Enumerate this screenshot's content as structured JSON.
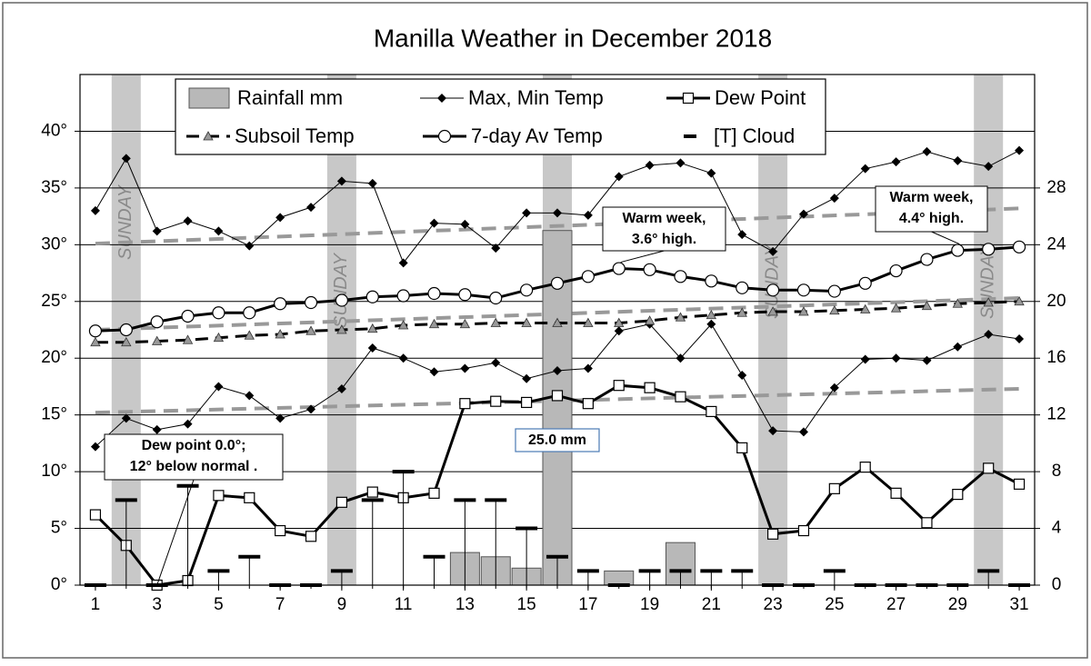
{
  "chart_data": {
    "type": "combo",
    "title": "Manilla Weather in December 2018",
    "x": [
      1,
      2,
      3,
      4,
      5,
      6,
      7,
      8,
      9,
      10,
      11,
      12,
      13,
      14,
      15,
      16,
      17,
      18,
      19,
      20,
      21,
      22,
      23,
      24,
      25,
      26,
      27,
      28,
      29,
      30,
      31
    ],
    "xlim": [
      0.5,
      31.5
    ],
    "xticks": [
      1,
      3,
      5,
      7,
      9,
      11,
      13,
      15,
      17,
      19,
      21,
      23,
      25,
      27,
      29,
      31
    ],
    "ylim": [
      0,
      45
    ],
    "yticks": [
      {
        "value": 0,
        "label": "0°"
      },
      {
        "value": 5,
        "label": "5°"
      },
      {
        "value": 10,
        "label": "10°"
      },
      {
        "value": 15,
        "label": "15°"
      },
      {
        "value": 20,
        "label": "20°"
      },
      {
        "value": 25,
        "label": "25°"
      },
      {
        "value": 30,
        "label": "30°"
      },
      {
        "value": 35,
        "label": "35°"
      },
      {
        "value": 40,
        "label": "40°"
      }
    ],
    "y2lim": [
      0,
      36
    ],
    "y2ticks": [
      0,
      4,
      8,
      12,
      16,
      20,
      24,
      28
    ],
    "grid": true,
    "sundays": {
      "label": "SUNDAY",
      "x": [
        2,
        9,
        16,
        23,
        30
      ],
      "color": "#c8c8c8"
    },
    "series": [
      {
        "name": "Rainfall mm",
        "kind": "bar",
        "axis": "y2",
        "color": "#b8b8b8",
        "values": [
          null,
          null,
          null,
          null,
          null,
          null,
          null,
          null,
          null,
          null,
          null,
          null,
          2.3,
          2.0,
          1.2,
          25.0,
          null,
          1.0,
          null,
          3.0,
          null,
          null,
          null,
          null,
          null,
          null,
          null,
          null,
          null,
          null,
          null
        ],
        "value_labels": [
          null,
          null,
          null,
          null,
          null,
          null,
          null,
          null,
          null,
          null,
          null,
          null,
          null,
          null,
          null,
          "25.0 mm",
          null,
          null,
          null,
          null,
          null,
          null,
          null,
          null,
          null,
          null,
          null,
          null,
          null,
          null,
          null
        ]
      },
      {
        "name": "Max, Min Temp",
        "kind": "line",
        "marker": "diamond",
        "color": "#000000",
        "values": [
          33.0,
          37.6,
          31.2,
          32.1,
          31.2,
          29.9,
          32.4,
          33.3,
          35.6,
          35.4,
          28.4,
          31.9,
          31.8,
          29.7,
          32.8,
          32.8,
          32.6,
          36.0,
          37.0,
          37.2,
          36.3,
          30.9,
          29.4,
          32.7,
          34.1,
          36.7,
          37.3,
          38.2,
          37.4,
          36.9,
          38.3
        ]
      },
      {
        "kind": "line",
        "marker": "diamond",
        "color": "#000000",
        "values": [
          12.2,
          14.7,
          13.7,
          14.2,
          17.5,
          16.7,
          14.7,
          15.5,
          17.3,
          20.9,
          20.0,
          18.8,
          19.1,
          19.6,
          18.2,
          18.9,
          19.1,
          22.4,
          23.0,
          20.0,
          23.0,
          18.5,
          13.6,
          13.5,
          17.4,
          19.9,
          20.0,
          19.8,
          21.0,
          22.1,
          21.7
        ]
      },
      {
        "name": "Dew Point",
        "kind": "line",
        "marker": "square",
        "color": "#000000",
        "values": [
          6.2,
          3.5,
          0.0,
          0.4,
          7.9,
          7.7,
          4.8,
          4.3,
          7.3,
          8.2,
          7.7,
          8.1,
          16.0,
          16.2,
          16.1,
          16.7,
          16.0,
          17.6,
          17.4,
          16.6,
          15.3,
          12.1,
          4.5,
          4.8,
          8.5,
          10.4,
          8.1,
          5.5,
          8.0,
          10.3,
          8.9
        ]
      },
      {
        "name": "Subsoil Temp",
        "kind": "dashed",
        "marker": "triangle",
        "color": "#000000",
        "values": [
          21.4,
          21.4,
          21.5,
          21.6,
          21.8,
          22.0,
          22.1,
          22.4,
          22.5,
          22.6,
          22.9,
          23.0,
          23.0,
          23.1,
          23.1,
          23.1,
          23.1,
          23.1,
          23.3,
          23.6,
          23.8,
          24.0,
          24.1,
          24.1,
          24.2,
          24.3,
          24.4,
          24.6,
          24.8,
          24.9,
          25.0
        ]
      },
      {
        "name": "7-day Av Temp",
        "kind": "line",
        "marker": "circle",
        "color": "#000000",
        "values": [
          22.4,
          22.5,
          23.2,
          23.7,
          24.0,
          24.0,
          24.8,
          24.9,
          25.1,
          25.4,
          25.5,
          25.7,
          25.6,
          25.3,
          26.0,
          26.6,
          27.2,
          27.9,
          27.8,
          27.2,
          26.8,
          26.2,
          26.0,
          26.0,
          25.9,
          26.6,
          27.7,
          28.7,
          29.5,
          29.6,
          29.8
        ]
      },
      {
        "name": "[T] Cloud",
        "kind": "dash",
        "axis": "y2",
        "color": "#000000",
        "values": [
          0,
          6,
          0,
          7,
          1,
          2,
          0,
          0,
          1,
          6,
          8,
          2,
          6,
          6,
          4,
          2,
          1,
          0,
          1,
          1,
          1,
          1,
          0,
          0,
          1,
          0,
          0,
          0,
          0,
          1,
          0
        ]
      }
    ],
    "normals": {
      "color": "#999999",
      "x": [
        1,
        31
      ],
      "series": [
        {
          "values": [
            30.1,
            33.2
          ]
        },
        {
          "values": [
            22.5,
            25.3
          ]
        },
        {
          "values": [
            15.2,
            17.3
          ]
        }
      ]
    },
    "annotations": [
      {
        "text": [
          "Dew point 0.0°;",
          "12° below normal ."
        ]
      },
      {
        "text": [
          "Warm week,",
          "3.6° high."
        ]
      },
      {
        "text": [
          "Warm week,",
          "4.4° high."
        ]
      }
    ]
  }
}
